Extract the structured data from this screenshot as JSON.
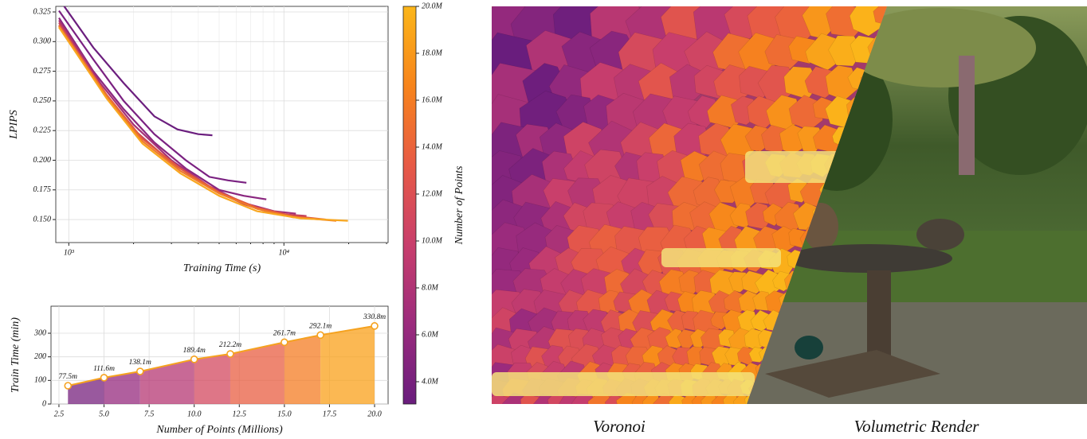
{
  "chart_data": [
    {
      "type": "line",
      "xlabel": "Training Time (s)",
      "ylabel": "LPIPS",
      "xscale": "log",
      "xlim": [
        870,
        30500
      ],
      "ylim": [
        0.1306,
        0.3297
      ],
      "xticks": [
        {
          "value": 1000,
          "label": "10³"
        },
        {
          "value": 10000,
          "label": "10⁴"
        }
      ],
      "xminorticks": [
        2000,
        3000,
        4000,
        5000,
        6000,
        7000,
        8000,
        9000,
        20000,
        30000
      ],
      "yticks": [
        {
          "value": 0.15,
          "label": "0.150"
        },
        0.175,
        {
          "value": 0.2,
          "label": "0.200"
        },
        0.225,
        {
          "value": 0.25,
          "label": "0.250"
        },
        0.275,
        {
          "value": 0.3,
          "label": "0.300"
        },
        0.325
      ],
      "grid": true,
      "series": [
        {
          "color": "#6b1e7e",
          "x": [
            950,
            1300,
            1800,
            2500,
            3200,
            4000,
            4650
          ],
          "values": [
            0.33,
            0.295,
            0.265,
            0.237,
            0.226,
            0.222,
            0.221
          ]
        },
        {
          "color": "#7a2181",
          "x": [
            900,
            1300,
            1800,
            2500,
            3500,
            4500,
            5500,
            6696
          ],
          "values": [
            0.326,
            0.285,
            0.25,
            0.222,
            0.2,
            0.186,
            0.183,
            0.181
          ]
        },
        {
          "color": "#8a267f",
          "x": [
            900,
            1300,
            1800,
            2500,
            3500,
            5000,
            6500,
            8286
          ],
          "values": [
            0.32,
            0.275,
            0.243,
            0.215,
            0.193,
            0.175,
            0.17,
            0.167
          ]
        },
        {
          "color": "#a53176",
          "x": [
            900,
            1400,
            2000,
            3000,
            4500,
            6500,
            9000,
            11364
          ],
          "values": [
            0.318,
            0.265,
            0.23,
            0.2,
            0.178,
            0.164,
            0.157,
            0.155
          ]
        },
        {
          "color": "#c2405f",
          "x": [
            900,
            1400,
            2000,
            3000,
            4500,
            6500,
            9000,
            12732
          ],
          "values": [
            0.316,
            0.262,
            0.226,
            0.198,
            0.177,
            0.163,
            0.155,
            0.153
          ]
        },
        {
          "color": "#e0593f",
          "x": [
            900,
            1500,
            2200,
            3300,
            5000,
            7500,
            11000,
            15702
          ],
          "values": [
            0.314,
            0.255,
            0.218,
            0.193,
            0.173,
            0.16,
            0.153,
            0.15
          ]
        },
        {
          "color": "#ef7a2a",
          "x": [
            900,
            1500,
            2200,
            3300,
            5000,
            7500,
            11000,
            17526
          ],
          "values": [
            0.313,
            0.254,
            0.216,
            0.191,
            0.172,
            0.159,
            0.152,
            0.149
          ]
        },
        {
          "color": "#f8a720",
          "x": [
            900,
            1500,
            2200,
            3300,
            5000,
            7500,
            12000,
            19848
          ],
          "values": [
            0.312,
            0.252,
            0.214,
            0.189,
            0.17,
            0.157,
            0.151,
            0.149
          ]
        }
      ],
      "colorbar": {
        "label": "Number of Points",
        "lim": [
          3.05,
          20
        ],
        "ticks": [
          {
            "value": 4,
            "label": "4.0M"
          },
          {
            "value": 6,
            "label": "6.0M"
          },
          {
            "value": 8,
            "label": "8.0M"
          },
          {
            "value": 10,
            "label": "10.0M"
          },
          {
            "value": 12,
            "label": "12.0M"
          },
          {
            "value": 14,
            "label": "14.0M"
          },
          {
            "value": 16,
            "label": "16.0M"
          },
          {
            "value": 18,
            "label": "18.0M"
          },
          {
            "value": 20,
            "label": "20.0M"
          }
        ],
        "colormap": [
          "#691d7d",
          "#9b2b7d",
          "#c83e6c",
          "#e75a46",
          "#f7841b",
          "#fbb61a"
        ]
      }
    },
    {
      "type": "area",
      "xlabel": "Number of Points (Millions)",
      "ylabel": "Train Time (min)",
      "xlim": [
        2.06,
        20.75
      ],
      "ylim": [
        0,
        414.6
      ],
      "xticks": [
        2.5,
        {
          "value": 5,
          "label": "5.0"
        },
        7.5,
        {
          "value": 10,
          "label": "10.0"
        },
        12.5,
        {
          "value": 15,
          "label": "15.0"
        },
        17.5,
        {
          "value": 20,
          "label": "20.0"
        }
      ],
      "yticks": [
        0,
        100,
        200,
        300
      ],
      "grid": true,
      "color": "#f5a21f",
      "x": [
        3,
        5,
        7,
        10,
        12,
        15,
        17,
        20
      ],
      "values": [
        77.5,
        111.6,
        138.1,
        189.4,
        212.2,
        261.7,
        292.1,
        330.8
      ],
      "value_labels": [
        "77.5m",
        "111.6m",
        "138.1m",
        "189.4m",
        "212.2m",
        "261.7m",
        "292.1m",
        "330.8m"
      ]
    }
  ],
  "image_panel": {
    "captions": [
      "Voronoi",
      "Volumetric Render"
    ]
  }
}
